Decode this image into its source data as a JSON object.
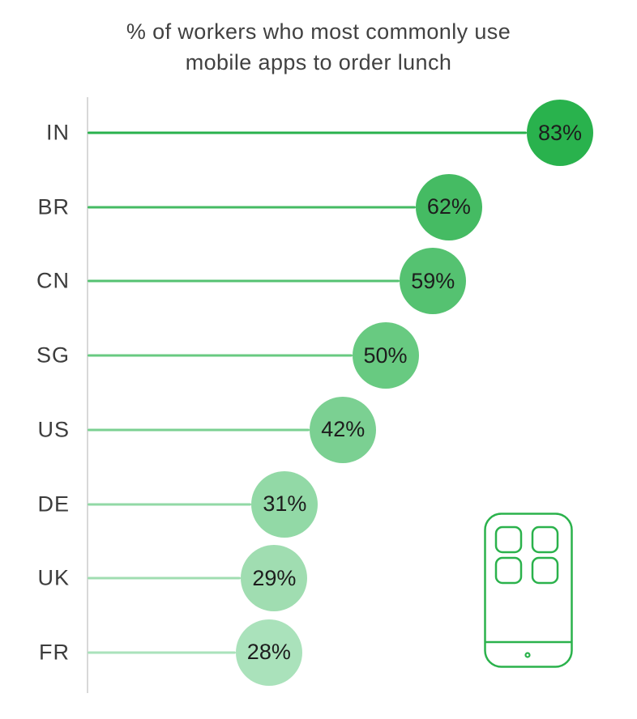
{
  "title_lines": {
    "line1": "% of workers who most commonly use",
    "line2": "mobile apps to order lunch"
  },
  "chart_data": {
    "type": "bar",
    "variant": "lollipop",
    "orientation": "horizontal",
    "title": "% of workers who most commonly use mobile apps to order lunch",
    "categories": [
      "IN",
      "BR",
      "CN",
      "SG",
      "US",
      "DE",
      "UK",
      "FR"
    ],
    "values": [
      83,
      62,
      59,
      50,
      42,
      31,
      29,
      28
    ],
    "unit": "%",
    "xlim": [
      0,
      100
    ],
    "grid": false,
    "legend": "none",
    "bubble_colors": [
      "#29b24d",
      "#45bb63",
      "#55c271",
      "#68ca81",
      "#7bd092",
      "#92d9a6",
      "#a0ddb1",
      "#aae2bb"
    ],
    "value_text_color": "#1d1d1d",
    "category_label_color": "#3c3c3c",
    "axis_line_color": "#d8d8d8"
  },
  "phone_icon": {
    "name": "mobile-phone-icon",
    "color": "#2bb24c"
  }
}
